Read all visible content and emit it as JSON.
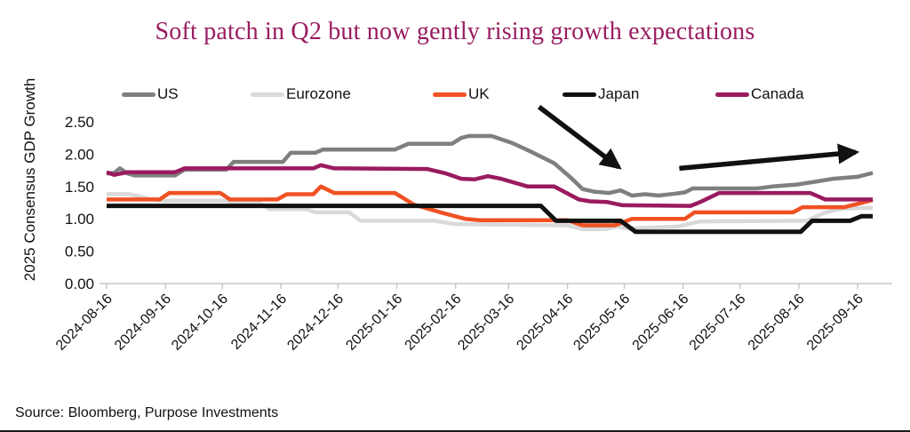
{
  "title": "Soft patch in Q2 but now gently rising growth expectations",
  "source": "Source: Bloomberg, Purpose Investments",
  "chart_data": {
    "type": "line",
    "title": "Soft patch in Q2 but now gently rising growth expectations",
    "xlabel": "",
    "ylabel": "2025 Consensus GDP Growth",
    "ylim": [
      0,
      2.5
    ],
    "y_ticks": [
      "0.00",
      "0.50",
      "1.00",
      "1.50",
      "2.00",
      "2.50"
    ],
    "x_ticks": [
      "2024-08-16",
      "2024-09-16",
      "2024-10-16",
      "2024-11-16",
      "2024-12-16",
      "2025-01-16",
      "2025-02-16",
      "2025-03-16",
      "2025-04-16",
      "2025-05-16",
      "2025-06-16",
      "2025-07-16",
      "2025-08-16",
      "2025-09-16"
    ],
    "x_range": [
      "2024-08-16",
      "2025-09-26"
    ],
    "grid": false,
    "legend_position": "top",
    "axis_color": "#c9c9c9",
    "title_color": "#9a1c60",
    "series": [
      {
        "name": "US",
        "color": "#7f7f7f",
        "width": 4.5,
        "points": [
          [
            "2024-08-16",
            1.7
          ],
          [
            "2024-08-20",
            1.71
          ],
          [
            "2024-08-23",
            1.78
          ],
          [
            "2024-08-27",
            1.7
          ],
          [
            "2024-08-31",
            1.67
          ],
          [
            "2024-09-21",
            1.67
          ],
          [
            "2024-09-26",
            1.76
          ],
          [
            "2024-10-18",
            1.76
          ],
          [
            "2024-10-22",
            1.88
          ],
          [
            "2024-11-17",
            1.88
          ],
          [
            "2024-11-21",
            2.02
          ],
          [
            "2024-12-04",
            2.02
          ],
          [
            "2024-12-08",
            2.07
          ],
          [
            "2025-01-15",
            2.07
          ],
          [
            "2025-01-22",
            2.16
          ],
          [
            "2025-02-14",
            2.16
          ],
          [
            "2025-02-19",
            2.25
          ],
          [
            "2025-02-23",
            2.28
          ],
          [
            "2025-03-07",
            2.28
          ],
          [
            "2025-03-18",
            2.17
          ],
          [
            "2025-03-27",
            2.05
          ],
          [
            "2025-04-09",
            1.86
          ],
          [
            "2025-04-18",
            1.63
          ],
          [
            "2025-04-24",
            1.46
          ],
          [
            "2025-04-30",
            1.42
          ],
          [
            "2025-05-08",
            1.4
          ],
          [
            "2025-05-14",
            1.44
          ],
          [
            "2025-05-20",
            1.36
          ],
          [
            "2025-05-27",
            1.38
          ],
          [
            "2025-06-03",
            1.36
          ],
          [
            "2025-06-12",
            1.39
          ],
          [
            "2025-06-17",
            1.41
          ],
          [
            "2025-06-21",
            1.47
          ],
          [
            "2025-07-25",
            1.47
          ],
          [
            "2025-08-02",
            1.5
          ],
          [
            "2025-08-15",
            1.53
          ],
          [
            "2025-08-26",
            1.58
          ],
          [
            "2025-09-03",
            1.62
          ],
          [
            "2025-09-16",
            1.65
          ],
          [
            "2025-09-24",
            1.71
          ]
        ]
      },
      {
        "name": "Eurozone",
        "color": "#d9d9d9",
        "width": 4.5,
        "points": [
          [
            "2024-08-16",
            1.38
          ],
          [
            "2024-08-28",
            1.38
          ],
          [
            "2024-09-12",
            1.28
          ],
          [
            "2024-10-18",
            1.28
          ],
          [
            "2024-10-23",
            1.24
          ],
          [
            "2024-11-05",
            1.24
          ],
          [
            "2024-11-10",
            1.15
          ],
          [
            "2024-11-29",
            1.15
          ],
          [
            "2024-12-04",
            1.1
          ],
          [
            "2024-12-22",
            1.1
          ],
          [
            "2024-12-28",
            0.97
          ],
          [
            "2025-02-05",
            0.97
          ],
          [
            "2025-02-15",
            0.92
          ],
          [
            "2025-04-16",
            0.9
          ],
          [
            "2025-04-24",
            0.84
          ],
          [
            "2025-05-06",
            0.84
          ],
          [
            "2025-05-12",
            0.88
          ],
          [
            "2025-05-18",
            0.85
          ],
          [
            "2025-06-13",
            0.88
          ],
          [
            "2025-06-25",
            0.96
          ],
          [
            "2025-08-20",
            0.97
          ],
          [
            "2025-08-30",
            1.1
          ],
          [
            "2025-09-08",
            1.16
          ],
          [
            "2025-09-24",
            1.17
          ]
        ]
      },
      {
        "name": "UK",
        "color": "#f05123",
        "width": 4.5,
        "points": [
          [
            "2024-08-16",
            1.3
          ],
          [
            "2024-09-13",
            1.3
          ],
          [
            "2024-09-18",
            1.4
          ],
          [
            "2024-10-15",
            1.4
          ],
          [
            "2024-10-20",
            1.3
          ],
          [
            "2024-11-14",
            1.3
          ],
          [
            "2024-11-19",
            1.38
          ],
          [
            "2024-12-03",
            1.38
          ],
          [
            "2024-12-07",
            1.5
          ],
          [
            "2024-12-14",
            1.4
          ],
          [
            "2025-01-15",
            1.4
          ],
          [
            "2025-01-25",
            1.22
          ],
          [
            "2025-02-08",
            1.1
          ],
          [
            "2025-02-21",
            1.0
          ],
          [
            "2025-03-01",
            0.98
          ],
          [
            "2025-04-16",
            0.98
          ],
          [
            "2025-04-24",
            0.9
          ],
          [
            "2025-05-11",
            0.9
          ],
          [
            "2025-05-20",
            1.0
          ],
          [
            "2025-06-17",
            1.0
          ],
          [
            "2025-06-22",
            1.1
          ],
          [
            "2025-08-13",
            1.1
          ],
          [
            "2025-08-18",
            1.18
          ],
          [
            "2025-09-09",
            1.18
          ],
          [
            "2025-09-24",
            1.29
          ]
        ]
      },
      {
        "name": "Japan",
        "color": "#111111",
        "width": 5,
        "points": [
          [
            "2024-08-16",
            1.2
          ],
          [
            "2025-04-02",
            1.2
          ],
          [
            "2025-04-10",
            0.97
          ],
          [
            "2025-05-14",
            0.97
          ],
          [
            "2025-05-22",
            0.8
          ],
          [
            "2025-08-17",
            0.8
          ],
          [
            "2025-08-23",
            0.97
          ],
          [
            "2025-09-12",
            0.97
          ],
          [
            "2025-09-18",
            1.04
          ],
          [
            "2025-09-24",
            1.04
          ]
        ]
      },
      {
        "name": "Canada",
        "color": "#9a1b60",
        "width": 4.5,
        "points": [
          [
            "2024-08-16",
            1.72
          ],
          [
            "2024-08-20",
            1.68
          ],
          [
            "2024-08-27",
            1.72
          ],
          [
            "2024-09-21",
            1.72
          ],
          [
            "2024-09-26",
            1.78
          ],
          [
            "2024-12-03",
            1.78
          ],
          [
            "2024-12-07",
            1.83
          ],
          [
            "2024-12-14",
            1.78
          ],
          [
            "2025-02-01",
            1.77
          ],
          [
            "2025-02-11",
            1.7
          ],
          [
            "2025-02-19",
            1.62
          ],
          [
            "2025-02-26",
            1.61
          ],
          [
            "2025-03-05",
            1.66
          ],
          [
            "2025-03-12",
            1.62
          ],
          [
            "2025-03-26",
            1.5
          ],
          [
            "2025-04-09",
            1.5
          ],
          [
            "2025-04-22",
            1.3
          ],
          [
            "2025-04-28",
            1.27
          ],
          [
            "2025-05-07",
            1.26
          ],
          [
            "2025-05-15",
            1.21
          ],
          [
            "2025-06-20",
            1.2
          ],
          [
            "2025-06-25",
            1.26
          ],
          [
            "2025-07-05",
            1.4
          ],
          [
            "2025-08-22",
            1.4
          ],
          [
            "2025-08-30",
            1.3
          ],
          [
            "2025-09-24",
            1.3
          ]
        ]
      }
    ],
    "annotations": {
      "arrows": [
        {
          "from": [
            "2025-04-01",
            2.73
          ],
          "to": [
            "2025-05-13",
            1.8
          ],
          "meaning": "falling-expectations-arrow"
        },
        {
          "from": [
            "2025-06-14",
            1.78
          ],
          "to": [
            "2025-09-15",
            2.03
          ],
          "meaning": "rising-expectations-arrow"
        }
      ]
    }
  },
  "legend_lefts": [
    137,
    282,
    487,
    633,
    805
  ]
}
